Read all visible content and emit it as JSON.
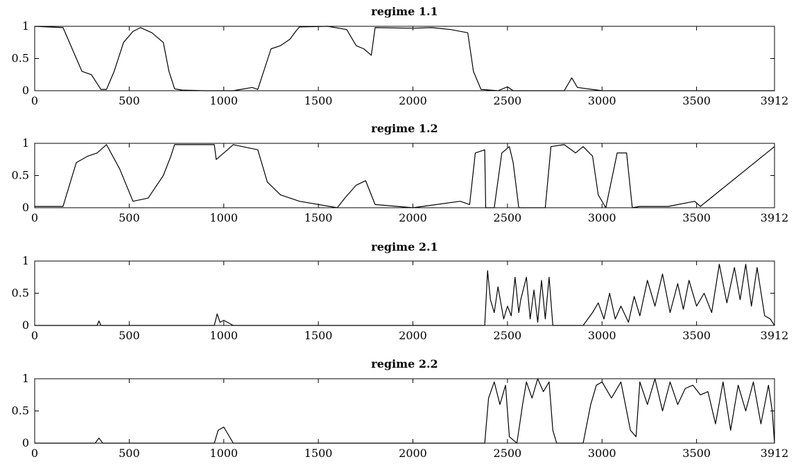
{
  "chart_data": [
    {
      "type": "line",
      "title": "regime 1.1",
      "xlim": [
        0,
        3912
      ],
      "ylim": [
        0,
        1
      ],
      "xticks": [
        "0",
        "500",
        "1000",
        "1500",
        "2000",
        "2500",
        "3000",
        "3500",
        "3912"
      ],
      "yticks": [
        "0",
        "0.5",
        "1"
      ],
      "grid": false,
      "series": [
        {
          "x": [
            0,
            150,
            250,
            300,
            350,
            380,
            420,
            470,
            520,
            560,
            620,
            680,
            710,
            740,
            780,
            900,
            1050,
            1150,
            1180,
            1250,
            1300,
            1350,
            1380,
            1400,
            1550,
            1650,
            1700,
            1740,
            1780,
            1800,
            2000,
            2100,
            2200,
            2290,
            2320,
            2360,
            2450,
            2500,
            2530,
            2800,
            2840,
            2870,
            3000,
            3912
          ],
          "y": [
            1.0,
            0.98,
            0.3,
            0.25,
            0.02,
            0.02,
            0.3,
            0.75,
            0.92,
            0.98,
            0.9,
            0.75,
            0.3,
            0.03,
            0.01,
            0.0,
            0.0,
            0.05,
            0.02,
            0.65,
            0.7,
            0.8,
            0.92,
            0.99,
            1.0,
            0.95,
            0.7,
            0.65,
            0.55,
            0.98,
            0.97,
            0.98,
            0.95,
            0.9,
            0.3,
            0.02,
            0.0,
            0.06,
            0.0,
            0.0,
            0.2,
            0.05,
            0.0,
            0.0
          ]
        }
      ]
    },
    {
      "type": "line",
      "title": "regime 1.2",
      "xlim": [
        0,
        3912
      ],
      "ylim": [
        0,
        1
      ],
      "xticks": [
        "0",
        "500",
        "1000",
        "1500",
        "2000",
        "2500",
        "3000",
        "3500",
        "3912"
      ],
      "yticks": [
        "0",
        "0.5",
        "1"
      ],
      "grid": false,
      "series": [
        {
          "x": [
            0,
            150,
            220,
            280,
            330,
            380,
            450,
            520,
            600,
            680,
            720,
            740,
            950,
            960,
            1000,
            1050,
            1180,
            1230,
            1300,
            1400,
            1600,
            1640,
            1700,
            1750,
            1800,
            2000,
            2250,
            2300,
            2330,
            2380,
            2385,
            2430,
            2470,
            2510,
            2530,
            2560,
            2700,
            2730,
            2800,
            2860,
            2900,
            2950,
            2980,
            3020,
            3080,
            3130,
            3160,
            3200,
            3350,
            3490,
            3520,
            3912
          ],
          "y": [
            0.02,
            0.02,
            0.7,
            0.8,
            0.85,
            0.98,
            0.6,
            0.1,
            0.15,
            0.5,
            0.8,
            0.98,
            0.98,
            0.75,
            0.85,
            0.98,
            0.9,
            0.4,
            0.2,
            0.1,
            0.0,
            0.15,
            0.35,
            0.42,
            0.05,
            0.0,
            0.1,
            0.05,
            0.85,
            0.9,
            0.0,
            0.0,
            0.85,
            0.95,
            0.7,
            0.0,
            0.0,
            0.95,
            0.98,
            0.85,
            0.95,
            0.8,
            0.2,
            0.0,
            0.85,
            0.85,
            0.0,
            0.02,
            0.02,
            0.1,
            0.02,
            0.95
          ]
        }
      ]
    },
    {
      "type": "line",
      "title": "regime 2.1",
      "xlim": [
        0,
        3912
      ],
      "ylim": [
        0,
        1
      ],
      "xticks": [
        "0",
        "500",
        "1000",
        "1500",
        "2000",
        "2500",
        "3000",
        "3500",
        "3912"
      ],
      "yticks": [
        "0",
        "0.5",
        "1"
      ],
      "grid": false,
      "series": [
        {
          "x": [
            0,
            330,
            340,
            350,
            950,
            965,
            980,
            1000,
            1050,
            2380,
            2395,
            2410,
            2430,
            2450,
            2480,
            2500,
            2520,
            2540,
            2560,
            2570,
            2600,
            2620,
            2640,
            2660,
            2680,
            2700,
            2720,
            2740,
            2900,
            2950,
            2980,
            3010,
            3040,
            3070,
            3100,
            3140,
            3170,
            3200,
            3240,
            3280,
            3320,
            3360,
            3400,
            3430,
            3460,
            3500,
            3540,
            3580,
            3620,
            3660,
            3700,
            3730,
            3760,
            3790,
            3820,
            3860,
            3890,
            3912
          ],
          "y": [
            0.0,
            0.0,
            0.07,
            0.0,
            0.0,
            0.18,
            0.05,
            0.08,
            0.0,
            0.0,
            0.85,
            0.4,
            0.2,
            0.6,
            0.1,
            0.3,
            0.15,
            0.75,
            0.2,
            0.4,
            0.75,
            0.1,
            0.55,
            0.05,
            0.7,
            0.1,
            0.75,
            0.0,
            0.0,
            0.2,
            0.35,
            0.1,
            0.5,
            0.1,
            0.3,
            0.05,
            0.45,
            0.15,
            0.7,
            0.3,
            0.8,
            0.2,
            0.65,
            0.25,
            0.7,
            0.3,
            0.5,
            0.2,
            0.95,
            0.35,
            0.9,
            0.4,
            0.95,
            0.3,
            0.9,
            0.15,
            0.1,
            0.0
          ]
        }
      ]
    },
    {
      "type": "line",
      "title": "regime 2.2",
      "xlim": [
        0,
        3912
      ],
      "ylim": [
        0,
        1
      ],
      "xticks": [
        "0",
        "500",
        "1000",
        "1500",
        "2000",
        "2500",
        "3000",
        "3500",
        "3912"
      ],
      "yticks": [
        "0",
        "0.5",
        "1"
      ],
      "grid": false,
      "series": [
        {
          "x": [
            0,
            320,
            340,
            360,
            950,
            970,
            1000,
            1020,
            1050,
            2380,
            2400,
            2430,
            2460,
            2490,
            2510,
            2550,
            2580,
            2600,
            2630,
            2660,
            2690,
            2720,
            2740,
            2760,
            2780,
            2900,
            2940,
            2970,
            3000,
            3050,
            3100,
            3150,
            3180,
            3200,
            3240,
            3280,
            3320,
            3360,
            3400,
            3440,
            3480,
            3520,
            3560,
            3600,
            3640,
            3680,
            3720,
            3760,
            3800,
            3840,
            3880,
            3900,
            3912
          ],
          "y": [
            0.0,
            0.0,
            0.08,
            0.0,
            0.0,
            0.2,
            0.25,
            0.15,
            0.0,
            0.0,
            0.7,
            0.95,
            0.6,
            0.9,
            0.1,
            0.0,
            0.6,
            0.95,
            0.7,
            1.0,
            0.8,
            0.95,
            0.2,
            0.0,
            0.0,
            0.0,
            0.6,
            0.9,
            0.95,
            0.7,
            0.95,
            0.2,
            0.1,
            0.95,
            0.6,
            1.0,
            0.5,
            0.95,
            0.6,
            0.85,
            0.9,
            0.75,
            0.8,
            0.3,
            0.95,
            0.2,
            0.9,
            0.5,
            0.95,
            0.3,
            0.9,
            0.5,
            0.0
          ]
        }
      ]
    }
  ]
}
